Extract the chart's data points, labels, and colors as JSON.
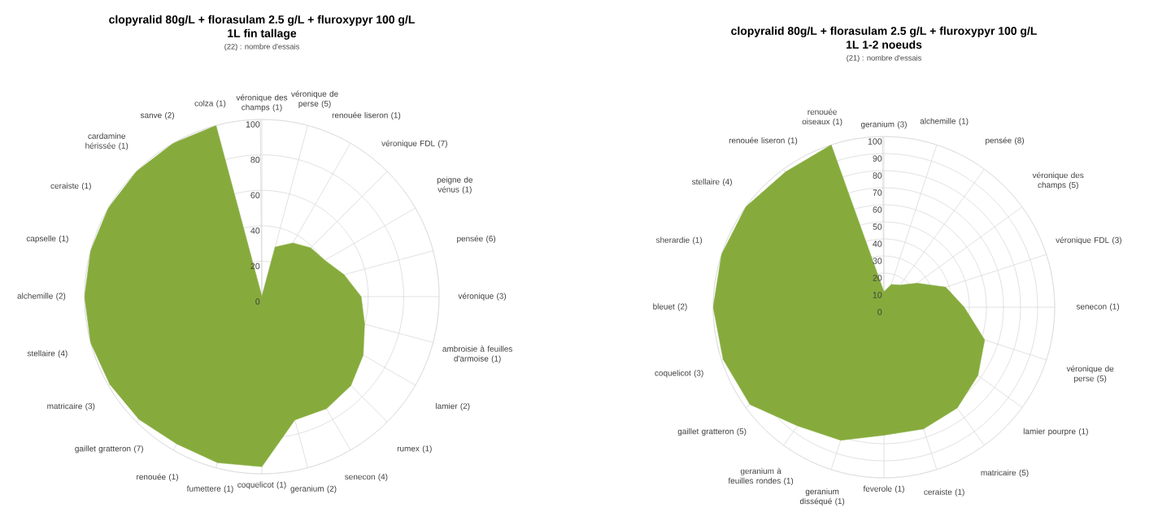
{
  "chart_data": [
    {
      "type": "radar",
      "title": "clopyralid 80g/L + florasulam 2.5 g/L + fluroxypyr 100 g/L",
      "subtitle": "1L fin tallage",
      "annotations": [
        "(22) : nombre d'essais"
      ],
      "categories": [
        "véronique des champs (1)",
        "véronique de perse (5)",
        "renouée liseron (1)",
        "véronique FDL (7)",
        "peigne de vénus (1)",
        "pensée (6)",
        "véronique (3)",
        "ambroisie à feuilles d'armoise (1)",
        "lamier (2)",
        "rumex (1)",
        "senecon (4)",
        "geranium (2)",
        "coquelicot (1)",
        "fumettere (1)",
        "renouée (1)",
        "gaillet gratteron (7)",
        "matricaire (3)",
        "stellaire (4)",
        "alchemille (2)",
        "capselle (1)",
        "ceraiste (1)",
        "cardamine hérissée (1)",
        "sanve (2)",
        "colza (1)"
      ],
      "series": [
        {
          "color": "#86ab3c",
          "values": [
            0,
            29,
            35,
            39,
            41,
            48,
            56,
            60,
            66,
            71,
            73,
            72,
            96,
            97,
            96,
            98,
            99,
            100,
            100,
            100,
            100,
            100,
            100,
            100
          ]
        }
      ],
      "ylim": [
        0,
        100
      ],
      "yticks": [
        0,
        20,
        40,
        60,
        80,
        100
      ],
      "grid": true
    },
    {
      "type": "radar",
      "title": "clopyralid 80g/L + florasulam 2.5 g/L + fluroxypyr 100 g/L",
      "subtitle": "1L 1-2 noeuds",
      "annotations": [
        "(21) : nombre d'essais"
      ],
      "categories": [
        "geranium (3)",
        "alchemille (1)",
        "pensée (8)",
        "véronique des champs (5)",
        "véronique FDL (3)",
        "senecon (1)",
        "véronique de perse (5)",
        "lamier pourpre (1)",
        "matricaire (5)",
        "ceraiste (1)",
        "feverole (1)",
        "geranium disséqué (1)",
        "geranium à feuilles rondes (1)",
        "gaillet gratteron (5)",
        "coquelicot (3)",
        "bleuet (2)",
        "sherardie (1)",
        "stellaire (4)",
        "renouée liseron (1)",
        "renouée oiseaux (1)"
      ],
      "series": [
        {
          "color": "#86ab3c",
          "values": [
            9,
            14,
            16,
            24,
            38,
            47,
            62,
            68,
            73,
            75,
            75,
            82,
            86,
            97,
            99,
            100,
            100,
            100,
            98,
            100
          ]
        }
      ],
      "ylim": [
        0,
        100
      ],
      "yticks": [
        0,
        10,
        20,
        30,
        40,
        50,
        60,
        70,
        80,
        90,
        100
      ],
      "grid": true
    }
  ]
}
